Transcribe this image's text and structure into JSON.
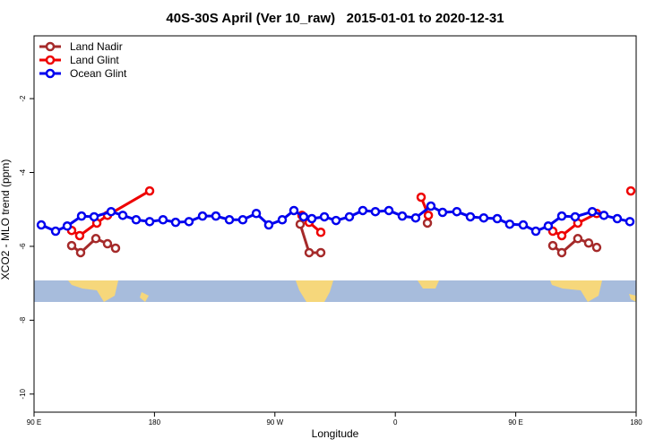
{
  "chart_data": {
    "type": "line",
    "title": "40S-30S April (Ver 10_raw)   2015-01-01 to 2020-12-31",
    "x_label": "Longitude",
    "y_label": "XCO2 - MLO trend (ppm)",
    "xlim": [
      90,
      540
    ],
    "ylim": [
      -10.49,
      -0.3
    ],
    "xticks": [
      {
        "value": 90,
        "label": "90 E"
      },
      {
        "value": 180,
        "label": "180"
      },
      {
        "value": 270,
        "label": "90 W"
      },
      {
        "value": 360,
        "label": "0"
      },
      {
        "value": 450,
        "label": "90 E"
      },
      {
        "value": 540,
        "label": "180"
      }
    ],
    "yticks": [
      -10,
      -8,
      -6,
      -4,
      -2
    ],
    "legend": "top-left",
    "series": [
      {
        "name": "Land Nadir",
        "color": "#a52a2a",
        "x": [
          118.1,
          124.8,
          136.2,
          144.9,
          150.9,
          null,
          288.9,
          295.6,
          304.3,
          null,
          384.0,
          null,
          477.7,
          484.4,
          496.4,
          504.5,
          510.5
        ],
        "values": [
          -5.98,
          -6.17,
          -5.79,
          -5.93,
          -6.05,
          null,
          -5.4,
          -6.17,
          -6.17,
          null,
          -5.37,
          null,
          -5.98,
          -6.17,
          -5.79,
          -5.91,
          -6.03
        ]
      },
      {
        "name": "Land Glint",
        "color": "#ee0000",
        "x": [
          118.1,
          124.1,
          136.9,
          144.9,
          176.4,
          null,
          290.2,
          295.6,
          304.3,
          null,
          379.3,
          384.7,
          null,
          477.7,
          484.4,
          496.4,
          510.5,
          null,
          536.0
        ],
        "values": [
          -5.57,
          -5.71,
          -5.37,
          -5.16,
          -4.5,
          null,
          -5.16,
          -5.35,
          -5.62,
          null,
          -4.67,
          -5.16,
          null,
          -5.59,
          -5.71,
          -5.37,
          -5.11,
          null,
          -4.5
        ]
      },
      {
        "name": "Ocean Glint",
        "color": "#0000ee",
        "x": [
          95.4,
          106.1,
          114.8,
          125.5,
          134.9,
          147.6,
          156.3,
          166.3,
          176.4,
          186.4,
          195.8,
          205.8,
          215.9,
          225.9,
          236.0,
          246.0,
          256.1,
          265.4,
          275.5,
          284.2,
          291.5,
          297.6,
          307.0,
          315.7,
          325.7,
          335.7,
          345.1,
          355.2,
          365.2,
          375.2,
          386.6,
          395.3,
          406.0,
          416.1,
          426.1,
          436.2,
          445.5,
          455.6,
          465.0,
          474.3,
          484.4,
          494.4,
          507.2,
          515.9,
          525.9,
          535.3
        ],
        "values": [
          -5.42,
          -5.59,
          -5.45,
          -5.18,
          -5.2,
          -5.06,
          -5.16,
          -5.28,
          -5.33,
          -5.28,
          -5.35,
          -5.33,
          -5.18,
          -5.18,
          -5.28,
          -5.28,
          -5.11,
          -5.42,
          -5.28,
          -5.03,
          -5.2,
          -5.25,
          -5.2,
          -5.3,
          -5.2,
          -5.03,
          -5.06,
          -5.03,
          -5.18,
          -5.23,
          -4.91,
          -5.08,
          -5.06,
          -5.2,
          -5.23,
          -5.25,
          -5.4,
          -5.42,
          -5.59,
          -5.45,
          -5.18,
          -5.2,
          -5.06,
          -5.16,
          -5.25,
          -5.33
        ]
      }
    ]
  }
}
